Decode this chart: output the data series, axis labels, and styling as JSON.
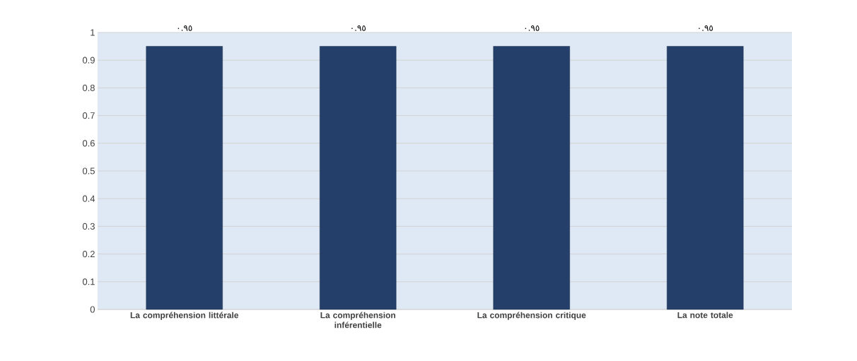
{
  "chart_data": {
    "type": "bar",
    "categories": [
      "La compréhension littérale",
      "La compréhension inférentielle",
      "La compréhension critique",
      "La note totale"
    ],
    "values": [
      0.95,
      0.95,
      0.95,
      0.95
    ],
    "value_labels": [
      "٠.٩٥",
      "٠.٩٥",
      "٠.٩٥",
      "٠.٩٥"
    ],
    "color": "#243f6a",
    "ylim": [
      0,
      1
    ],
    "yticks": [
      0,
      0.1,
      0.2,
      0.3,
      0.4,
      0.5,
      0.6,
      0.7,
      0.8,
      0.9,
      1
    ],
    "grid": "y"
  }
}
